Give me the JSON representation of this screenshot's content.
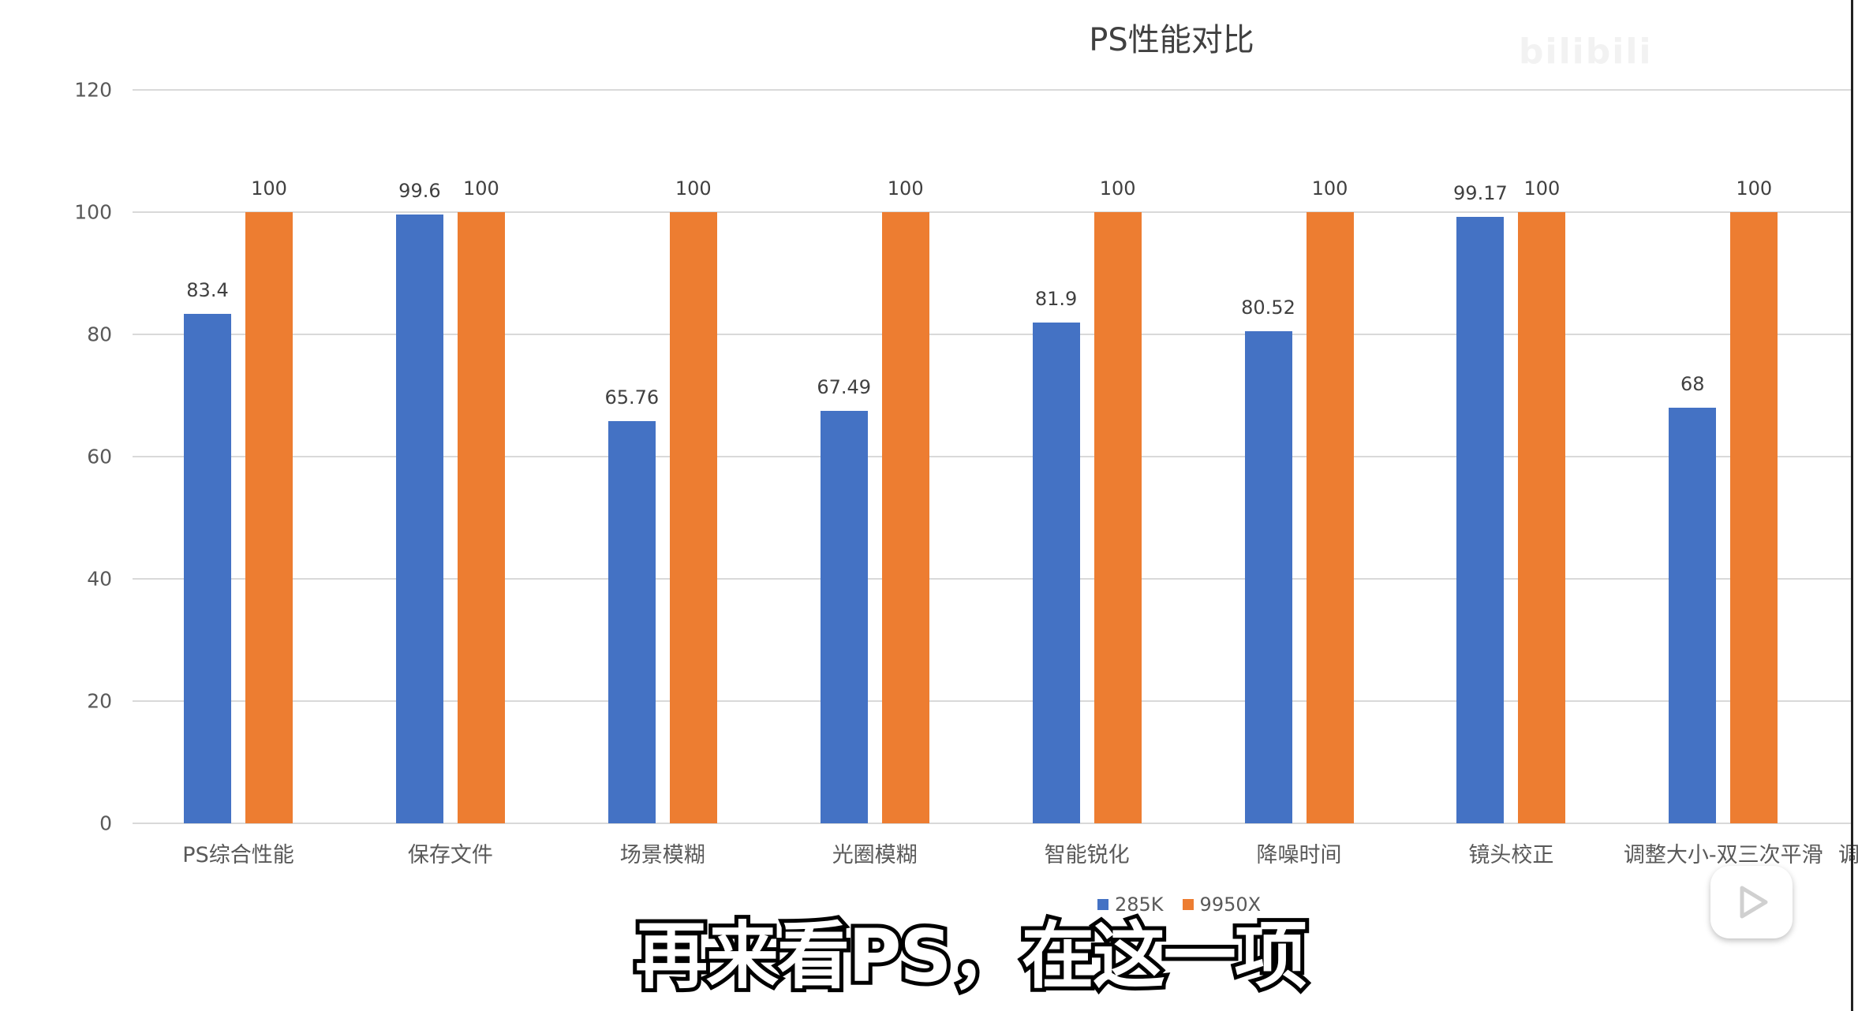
{
  "chart_data": {
    "type": "bar",
    "title": "PS性能对比",
    "xlabel": "",
    "ylabel": "",
    "ylim": [
      0,
      120
    ],
    "yticks": [
      0,
      20,
      40,
      60,
      80,
      100,
      120
    ],
    "grid": true,
    "legend_position": "bottom",
    "categories": [
      "PS综合性能",
      "保存文件",
      "场景模糊",
      "光圈模糊",
      "智能锐化",
      "降噪时间",
      "镜头校正",
      "调整大小-双三次平滑"
    ],
    "series": [
      {
        "name": "285K",
        "color": "#4472c4",
        "values": [
          83.4,
          99.6,
          65.76,
          67.49,
          81.9,
          80.52,
          99.17,
          68
        ]
      },
      {
        "name": "9950X",
        "color": "#ed7d31",
        "values": [
          100,
          100,
          100,
          100,
          100,
          100,
          100,
          100
        ]
      }
    ],
    "data_labels": [
      [
        "83.4",
        "99.6",
        "65.76",
        "67.49",
        "81.9",
        "80.52",
        "99.17",
        "68"
      ],
      [
        "100",
        "100",
        "100",
        "100",
        "100",
        "100",
        "100",
        "100"
      ]
    ],
    "truncated_category_fragment": "调"
  },
  "overlay": {
    "subtitle": "再来看PS，在这一项",
    "watermark": "bilibili",
    "play_icon": "bilibili-tv-play-icon"
  }
}
